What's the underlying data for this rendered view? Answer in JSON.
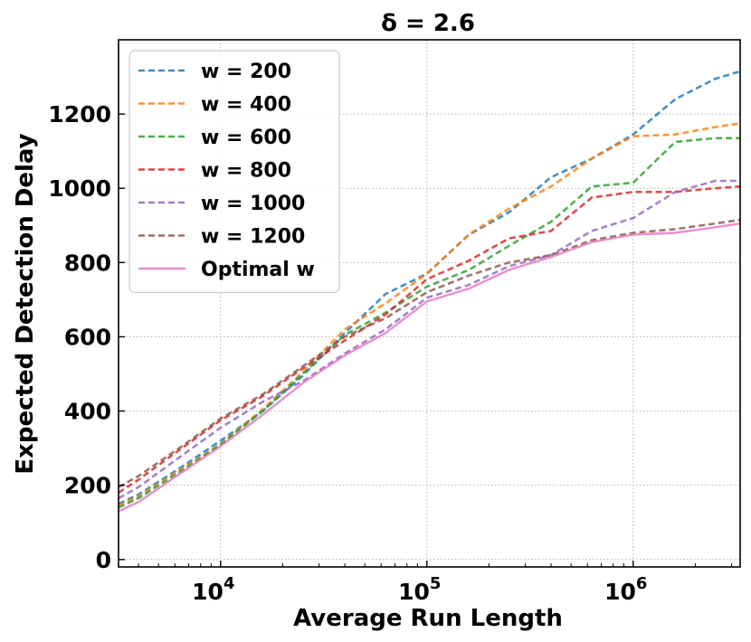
{
  "chart_data": {
    "type": "line",
    "title": "δ = 2.6",
    "xlabel": "Average Run Length",
    "ylabel": "Expected Detection Delay",
    "x_scale": "log",
    "xlim": [
      3200,
      3300000
    ],
    "ylim": [
      -20,
      1400
    ],
    "x_ticks": [
      {
        "value": 10000,
        "base": "10",
        "exp": "4"
      },
      {
        "value": 100000,
        "base": "10",
        "exp": "5"
      },
      {
        "value": 1000000,
        "base": "10",
        "exp": "6"
      }
    ],
    "y_ticks": [
      0,
      200,
      400,
      600,
      800,
      1000,
      1200
    ],
    "grid": true,
    "legend_position": "upper-left",
    "series": [
      {
        "name": "w = 200",
        "color": "#1f77b4",
        "style": "dashed",
        "x": [
          3200,
          4000,
          6300,
          10000,
          16000,
          25000,
          40000,
          63000,
          100000,
          160000,
          250000,
          400000,
          630000,
          1000000,
          1600000,
          2500000,
          3300000
        ],
        "y": [
          150,
          175,
          245,
          320,
          400,
          495,
          610,
          715,
          770,
          875,
          935,
          1030,
          1080,
          1145,
          1240,
          1295,
          1315
        ]
      },
      {
        "name": "w = 400",
        "color": "#ff7f0e",
        "style": "dashed",
        "x": [
          3200,
          4000,
          6300,
          10000,
          16000,
          25000,
          40000,
          63000,
          100000,
          160000,
          250000,
          400000,
          630000,
          1000000,
          1600000,
          2500000,
          3300000
        ],
        "y": [
          145,
          170,
          240,
          310,
          405,
          505,
          620,
          690,
          770,
          875,
          945,
          1005,
          1080,
          1140,
          1145,
          1165,
          1175
        ]
      },
      {
        "name": "w = 600",
        "color": "#2ca02c",
        "style": "dashed",
        "x": [
          3200,
          4000,
          6300,
          10000,
          16000,
          25000,
          40000,
          63000,
          100000,
          160000,
          250000,
          400000,
          630000,
          1000000,
          1600000,
          2500000,
          3300000
        ],
        "y": [
          140,
          165,
          235,
          310,
          400,
          500,
          605,
          665,
          735,
          780,
          845,
          910,
          1005,
          1015,
          1125,
          1135,
          1135
        ]
      },
      {
        "name": "w = 800",
        "color": "#d62728",
        "style": "dashed",
        "x": [
          3200,
          4000,
          6300,
          10000,
          16000,
          25000,
          40000,
          63000,
          100000,
          160000,
          250000,
          400000,
          630000,
          1000000,
          1600000,
          2500000,
          3300000
        ],
        "y": [
          180,
          215,
          295,
          375,
          440,
          515,
          590,
          660,
          755,
          805,
          865,
          885,
          975,
          990,
          990,
          1000,
          1005
        ]
      },
      {
        "name": "w = 1000",
        "color": "#9467bd",
        "style": "dashed",
        "x": [
          3200,
          4000,
          6300,
          10000,
          16000,
          25000,
          40000,
          63000,
          100000,
          160000,
          250000,
          400000,
          630000,
          1000000,
          1600000,
          2500000,
          3300000
        ],
        "y": [
          165,
          195,
          275,
          355,
          425,
          480,
          555,
          620,
          705,
          740,
          790,
          820,
          885,
          920,
          990,
          1020,
          1020
        ]
      },
      {
        "name": "w = 1200",
        "color": "#8c564b",
        "style": "dashed",
        "x": [
          3200,
          4000,
          6300,
          10000,
          16000,
          25000,
          40000,
          63000,
          100000,
          160000,
          250000,
          400000,
          630000,
          1000000,
          1600000,
          2500000,
          3300000
        ],
        "y": [
          195,
          225,
          300,
          380,
          445,
          520,
          600,
          650,
          720,
          765,
          800,
          820,
          860,
          880,
          890,
          905,
          915
        ]
      },
      {
        "name": "Optimal w",
        "color": "#e377c2",
        "style": "solid",
        "x": [
          3200,
          4000,
          6300,
          10000,
          16000,
          25000,
          40000,
          63000,
          100000,
          160000,
          250000,
          400000,
          630000,
          1000000,
          1600000,
          2500000,
          3300000
        ],
        "y": [
          130,
          155,
          230,
          305,
          390,
          475,
          550,
          610,
          695,
          730,
          780,
          815,
          855,
          875,
          880,
          895,
          905
        ]
      }
    ]
  }
}
